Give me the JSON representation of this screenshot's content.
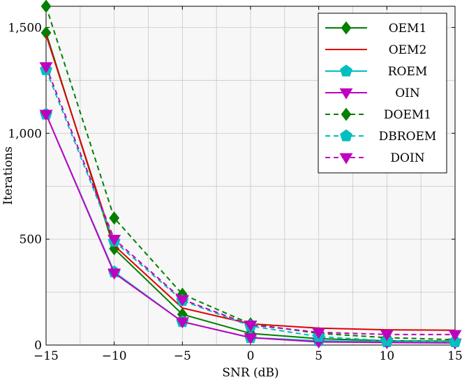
{
  "chart_data": {
    "type": "line",
    "xlabel": "SNR (dB)",
    "ylabel": "Iterations",
    "xlim": [
      -15,
      15
    ],
    "ylim": [
      0,
      1600
    ],
    "x_ticks": [
      -15,
      -10,
      -5,
      0,
      5,
      10,
      15
    ],
    "x_tick_labels": [
      "−15",
      "−10",
      "−5",
      "0",
      "5",
      "10",
      "15"
    ],
    "y_ticks": [
      0,
      500,
      1000,
      1500
    ],
    "y_tick_labels": [
      "0",
      "500",
      "1,000",
      "1,500"
    ],
    "grid": true,
    "legend_position": "top-right",
    "x": [
      -15,
      -10,
      -5,
      0,
      5,
      10,
      15
    ],
    "series": [
      {
        "name": "OEM1",
        "values": [
          1475,
          455,
          145,
          55,
          30,
          20,
          18
        ],
        "color": "#007f00",
        "dashed": false,
        "marker": "diamond"
      },
      {
        "name": "OEM2",
        "values": [
          1465,
          470,
          175,
          100,
          80,
          72,
          70
        ],
        "color": "#e00000",
        "dashed": false,
        "marker": "none"
      },
      {
        "name": "ROEM",
        "values": [
          1090,
          345,
          110,
          35,
          20,
          15,
          15
        ],
        "color": "#00bfbf",
        "dashed": false,
        "marker": "pentagon"
      },
      {
        "name": "OIN",
        "values": [
          1090,
          340,
          110,
          35,
          15,
          12,
          10
        ],
        "color": "#bf00bf",
        "dashed": false,
        "marker": "triangle-down"
      },
      {
        "name": "DOEM1",
        "values": [
          1600,
          600,
          240,
          100,
          55,
          35,
          25
        ],
        "color": "#007f00",
        "dashed": true,
        "marker": "diamond"
      },
      {
        "name": "DBROEM",
        "values": [
          1300,
          490,
          210,
          90,
          40,
          20,
          15
        ],
        "color": "#00bfbf",
        "dashed": true,
        "marker": "pentagon"
      },
      {
        "name": "DOIN",
        "values": [
          1315,
          500,
          215,
          95,
          60,
          50,
          50
        ],
        "color": "#bf00bf",
        "dashed": true,
        "marker": "triangle-down"
      }
    ]
  }
}
